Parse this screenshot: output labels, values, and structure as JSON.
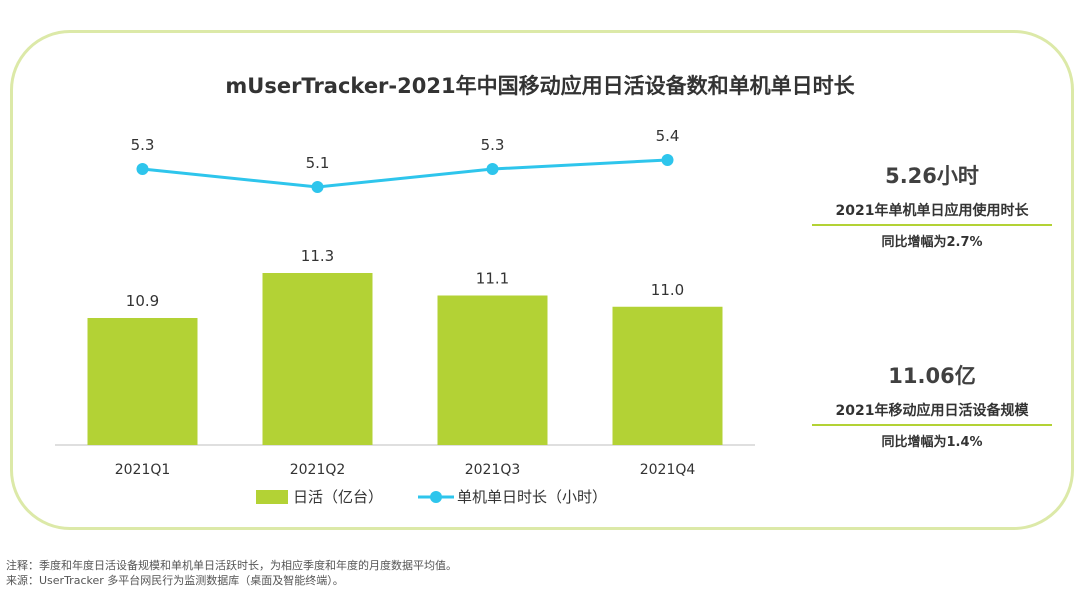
{
  "title": "mUserTracker-2021年中国移动应用日活设备数和单机单日时长",
  "chart_data": {
    "type": "bar+line",
    "categories": [
      "2021Q1",
      "2021Q2",
      "2021Q3",
      "2021Q4"
    ],
    "series": [
      {
        "name": "日活（亿台）",
        "type": "bar",
        "values": [
          10.9,
          11.3,
          11.1,
          11.0
        ],
        "labels": [
          "10.9",
          "11.3",
          "11.1",
          "11.0"
        ],
        "color": "#b3d235"
      },
      {
        "name": "单机单日时长（小时）",
        "type": "line",
        "values": [
          5.3,
          5.1,
          5.3,
          5.4
        ],
        "labels": [
          "5.3",
          "5.1",
          "5.3",
          "5.4"
        ],
        "color": "#2ec5ec"
      }
    ],
    "bar_axis": {
      "min": 0,
      "max": 11.3
    },
    "line_axis": {
      "min": 5.0,
      "max": 5.5
    },
    "legend": "bottom",
    "grid": false
  },
  "summary": [
    {
      "value": "5.26小时",
      "label": "2021年单机单日应用使用时长",
      "sub": "同比增幅为2.7%"
    },
    {
      "value": "11.06亿",
      "label": "2021年移动应用日活设备规模",
      "sub": "同比增幅为1.4%"
    }
  ],
  "notes": {
    "note": "注释：季度和年度日活设备规模和单机单日活跃时长，为相应季度和年度的月度数据平均值。",
    "source": "来源：UserTracker 多平台网民行为监测数据库（桌面及智能终端）。"
  }
}
